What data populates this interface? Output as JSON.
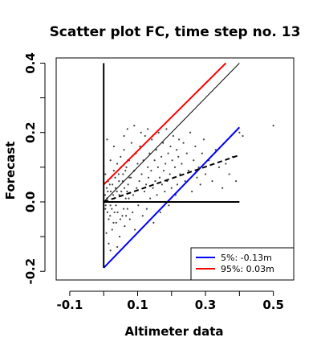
{
  "chart_data": {
    "type": "scatter",
    "title": "Scatter plot FC, time step no. 13",
    "xlabel": "Altimeter data",
    "ylabel": "Forecast",
    "xlim": [
      -0.14,
      0.56
    ],
    "ylim": [
      -0.225,
      0.415
    ],
    "xticks": [
      -0.1,
      0.1,
      0.3,
      0.5
    ],
    "xtick_labels": [
      "-0.1",
      "0.1",
      "0.3",
      "0.5"
    ],
    "xticks_minor": [
      0.0,
      0.2,
      0.4
    ],
    "yticks": [
      -0.2,
      -0.1,
      0.0,
      0.1,
      0.2,
      0.3,
      0.4
    ],
    "ytick_labels": [
      "-0.2",
      "",
      "0.0",
      "",
      "0.2",
      "",
      "0.4"
    ],
    "scatter": {
      "color": "#444444",
      "description_points": "dense cloud of points near x 0.0-0.1, y -0.1-0.15, sparse up to x 0.5",
      "points": [
        [
          0.0,
          0.0
        ],
        [
          0.005,
          -0.02
        ],
        [
          0.01,
          0.01
        ],
        [
          0.012,
          0.03
        ],
        [
          0.015,
          -0.05
        ],
        [
          0.018,
          0.05
        ],
        [
          0.02,
          -0.01
        ],
        [
          0.022,
          0.07
        ],
        [
          0.025,
          -0.08
        ],
        [
          0.028,
          0.02
        ],
        [
          0.03,
          0.09
        ],
        [
          0.032,
          -0.03
        ],
        [
          0.035,
          0.04
        ],
        [
          0.037,
          -0.06
        ],
        [
          0.04,
          0.11
        ],
        [
          0.042,
          0.0
        ],
        [
          0.045,
          0.06
        ],
        [
          0.047,
          -0.1
        ],
        [
          0.05,
          0.13
        ],
        [
          0.052,
          0.03
        ],
        [
          0.055,
          -0.04
        ],
        [
          0.057,
          0.08
        ],
        [
          0.06,
          0.15
        ],
        [
          0.062,
          -0.07
        ],
        [
          0.065,
          0.01
        ],
        [
          0.067,
          0.1
        ],
        [
          0.07,
          -0.02
        ],
        [
          0.072,
          0.05
        ],
        [
          0.075,
          0.12
        ],
        [
          0.077,
          -0.05
        ],
        [
          0.08,
          0.07
        ],
        [
          0.082,
          0.17
        ],
        [
          0.085,
          -0.03
        ],
        [
          0.087,
          0.02
        ],
        [
          0.09,
          0.09
        ],
        [
          0.092,
          -0.08
        ],
        [
          0.095,
          0.14
        ],
        [
          0.097,
          0.04
        ],
        [
          0.1,
          0.11
        ],
        [
          0.102,
          -0.01
        ],
        [
          0.105,
          0.06
        ],
        [
          0.107,
          0.16
        ],
        [
          0.11,
          0.0
        ],
        [
          0.112,
          0.08
        ],
        [
          0.115,
          -0.04
        ],
        [
          0.117,
          0.12
        ],
        [
          0.12,
          0.03
        ],
        [
          0.122,
          0.19
        ],
        [
          0.125,
          0.05
        ],
        [
          0.127,
          -0.02
        ],
        [
          0.13,
          0.1
        ],
        [
          0.132,
          0.07
        ],
        [
          0.135,
          0.14
        ],
        [
          0.137,
          0.01
        ],
        [
          0.14,
          0.09
        ],
        [
          0.142,
          0.18
        ],
        [
          0.145,
          0.04
        ],
        [
          0.147,
          -0.06
        ],
        [
          0.15,
          0.12
        ],
        [
          0.152,
          0.06
        ],
        [
          0.155,
          0.15
        ],
        [
          0.157,
          0.02
        ],
        [
          0.16,
          0.1
        ],
        [
          0.162,
          0.2
        ],
        [
          0.165,
          0.07
        ],
        [
          0.167,
          -0.03
        ],
        [
          0.17,
          0.13
        ],
        [
          0.172,
          0.05
        ],
        [
          0.175,
          0.17
        ],
        [
          0.177,
          0.09
        ],
        [
          0.18,
          0.03
        ],
        [
          0.182,
          0.11
        ],
        [
          0.185,
          0.21
        ],
        [
          0.187,
          0.06
        ],
        [
          0.19,
          0.14
        ],
        [
          0.192,
          -0.01
        ],
        [
          0.195,
          0.08
        ],
        [
          0.197,
          0.16
        ],
        [
          0.2,
          0.04
        ],
        [
          0.202,
          0.12
        ],
        [
          0.205,
          0.19
        ],
        [
          0.207,
          0.07
        ],
        [
          0.21,
          0.1
        ],
        [
          0.212,
          0.02
        ],
        [
          0.215,
          0.15
        ],
        [
          0.217,
          0.05
        ],
        [
          0.22,
          0.13
        ],
        [
          0.222,
          0.18
        ],
        [
          0.225,
          0.08
        ],
        [
          0.227,
          0.0
        ],
        [
          0.23,
          0.11
        ],
        [
          0.235,
          0.17
        ],
        [
          0.24,
          0.06
        ],
        [
          0.245,
          0.14
        ],
        [
          0.25,
          0.09
        ],
        [
          0.255,
          0.2
        ],
        [
          0.26,
          0.03
        ],
        [
          0.265,
          0.12
        ],
        [
          0.27,
          0.16
        ],
        [
          0.275,
          0.07
        ],
        [
          0.28,
          0.1
        ],
        [
          0.285,
          0.05
        ],
        [
          0.29,
          0.14
        ],
        [
          0.295,
          0.18
        ],
        [
          0.3,
          0.08
        ],
        [
          0.31,
          0.12
        ],
        [
          0.32,
          0.06
        ],
        [
          0.33,
          0.15
        ],
        [
          0.34,
          0.1
        ],
        [
          0.35,
          0.04
        ],
        [
          0.36,
          0.11
        ],
        [
          0.37,
          0.08
        ],
        [
          0.38,
          0.13
        ],
        [
          0.39,
          0.06
        ],
        [
          0.4,
          0.2
        ],
        [
          0.41,
          0.19
        ],
        [
          0.5,
          0.22
        ],
        [
          0.02,
          0.12
        ],
        [
          0.03,
          0.16
        ],
        [
          0.01,
          0.18
        ],
        [
          0.015,
          -0.12
        ],
        [
          0.02,
          -0.14
        ],
        [
          0.005,
          0.08
        ],
        [
          0.008,
          -0.09
        ],
        [
          0.04,
          -0.13
        ],
        [
          0.06,
          0.19
        ],
        [
          0.07,
          0.21
        ],
        [
          0.09,
          0.22
        ],
        [
          0.11,
          0.2
        ],
        [
          0.13,
          0.21
        ],
        [
          0.004,
          0.02
        ],
        [
          0.006,
          -0.01
        ],
        [
          0.009,
          0.04
        ],
        [
          0.011,
          -0.03
        ],
        [
          0.013,
          0.06
        ],
        [
          0.016,
          0.0
        ],
        [
          0.019,
          -0.04
        ],
        [
          0.021,
          0.03
        ],
        [
          0.024,
          -0.02
        ],
        [
          0.026,
          0.05
        ],
        [
          0.029,
          -0.06
        ],
        [
          0.031,
          0.01
        ],
        [
          0.034,
          0.07
        ],
        [
          0.036,
          -0.01
        ],
        [
          0.039,
          0.03
        ],
        [
          0.041,
          -0.03
        ],
        [
          0.044,
          0.08
        ],
        [
          0.046,
          0.02
        ],
        [
          0.049,
          -0.05
        ],
        [
          0.051,
          0.1
        ],
        [
          0.054,
          0.0
        ],
        [
          0.056,
          0.06
        ],
        [
          0.059,
          -0.02
        ],
        [
          0.061,
          0.04
        ],
        [
          0.064,
          0.09
        ],
        [
          0.066,
          -0.04
        ],
        [
          0.069,
          0.03
        ],
        [
          0.071,
          0.12
        ],
        [
          0.074,
          0.01
        ],
        [
          0.076,
          0.07
        ]
      ]
    },
    "series": [
      {
        "type": "line",
        "color": "#000000",
        "style": "solid",
        "width": 1,
        "x": [
          0.0,
          0.4
        ],
        "y": [
          0.0,
          0.4
        ]
      },
      {
        "type": "line",
        "color": "#ff0000",
        "style": "solid",
        "width": 2,
        "x": [
          0.0,
          0.36
        ],
        "y": [
          0.05,
          0.4
        ]
      },
      {
        "type": "line",
        "color": "#0000ff",
        "style": "solid",
        "width": 2,
        "x": [
          0.0,
          0.4
        ],
        "y": [
          -0.19,
          0.215
        ]
      },
      {
        "type": "line",
        "color": "#000000",
        "style": "dashed",
        "width": 2,
        "x": [
          0.0,
          0.4
        ],
        "y": [
          0.0,
          0.135
        ]
      },
      {
        "type": "line",
        "color": "#000000",
        "style": "solid",
        "width": 2,
        "x": [
          0.0,
          0.4
        ],
        "y": [
          0.0,
          0.0
        ]
      },
      {
        "type": "line",
        "color": "#000000",
        "style": "solid",
        "width": 2,
        "x": [
          0.0,
          0.0
        ],
        "y": [
          -0.19,
          0.4
        ]
      }
    ],
    "legend": {
      "position": "bottom-right",
      "entries": [
        {
          "color": "#0000ff",
          "label": "5%: -0.13m"
        },
        {
          "color": "#ff0000",
          "label": "95%:  0.03m"
        }
      ]
    }
  }
}
